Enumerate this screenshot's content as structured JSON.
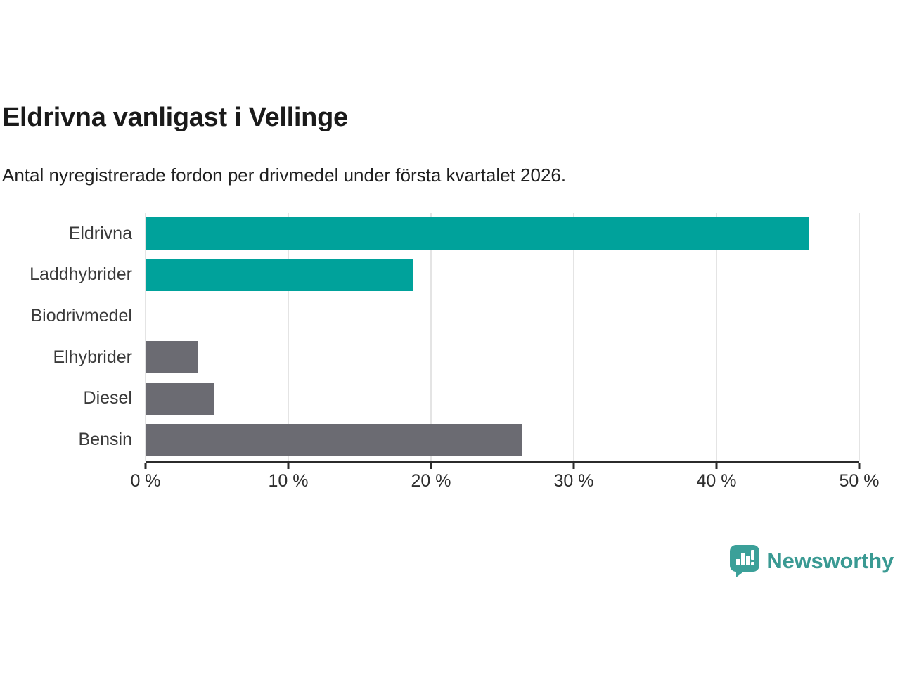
{
  "chart_data": {
    "type": "bar",
    "orientation": "horizontal",
    "title": "Eldrivna vanligast i Vellinge",
    "subtitle": "Antal nyregistrerade fordon per drivmedel under första kvartalet 2026.",
    "categories": [
      "Eldrivna",
      "Laddhybrider",
      "Biodrivmedel",
      "Elhybrider",
      "Diesel",
      "Bensin"
    ],
    "values": [
      46.5,
      18.7,
      0,
      3.7,
      4.8,
      26.4
    ],
    "value_unit": "%",
    "bar_colors": [
      "#00a29b",
      "#00a29b",
      "#00a29b",
      "#6b6b72",
      "#6b6b72",
      "#6b6b72"
    ],
    "xlabel": "",
    "ylabel": "",
    "xlim": [
      0,
      50
    ],
    "x_ticks": [
      0,
      10,
      20,
      30,
      40,
      50
    ],
    "x_tick_labels": [
      "0 %",
      "10 %",
      "20 %",
      "30 %",
      "40 %",
      "50 %"
    ],
    "grid": true,
    "legend": false,
    "colors": {
      "accent_teal": "#00a29b",
      "neutral_gray": "#6b6b72",
      "gridline": "#e4e4e4",
      "axis": "#2b2b2b",
      "text": "#3a3a3a"
    }
  },
  "footer": {
    "brand": "Newsworthy",
    "brand_color": "#3a9a93",
    "icon_color": "#3ba099"
  }
}
